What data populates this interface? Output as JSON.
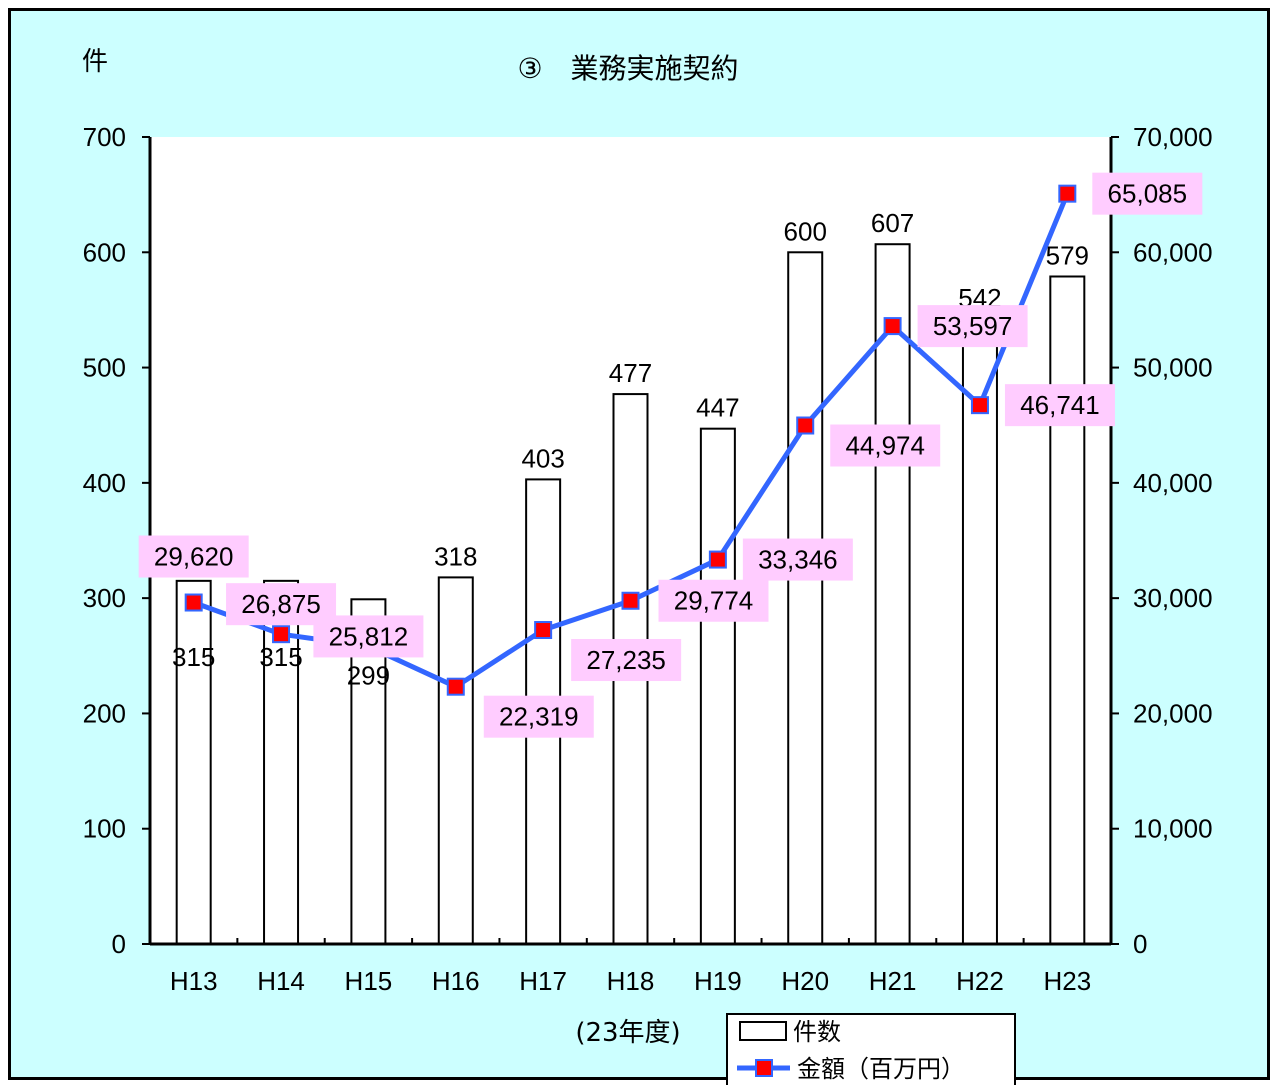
{
  "chart_data": {
    "type": "bar+line",
    "title": "③　業務実施契約",
    "y_left_label": "件",
    "x_note": "(23年度)",
    "categories": [
      "H13",
      "H14",
      "H15",
      "H16",
      "H17",
      "H18",
      "H19",
      "H20",
      "H21",
      "H22",
      "H23"
    ],
    "series": [
      {
        "name": "件数",
        "type": "bar",
        "axis": "left",
        "values": [
          315,
          315,
          299,
          318,
          403,
          477,
          447,
          600,
          607,
          542,
          579
        ],
        "labels": [
          "315",
          "315",
          "299",
          "318",
          "403",
          "477",
          "447",
          "600",
          "607",
          "542",
          "579"
        ]
      },
      {
        "name": "金額（百万円）",
        "type": "line",
        "axis": "right",
        "values": [
          29620,
          26875,
          25812,
          22319,
          27235,
          29774,
          33346,
          44974,
          53597,
          46741,
          65085
        ],
        "labels": [
          "29,620",
          "26,875",
          "25,812",
          "22,319",
          "27,235",
          "29,774",
          "33,346",
          "44,974",
          "53,597",
          "46,741",
          "65,085"
        ]
      }
    ],
    "y_left": {
      "min": 0,
      "max": 700,
      "ticks": [
        "0",
        "100",
        "200",
        "300",
        "400",
        "500",
        "600",
        "700"
      ]
    },
    "y_right": {
      "min": 0,
      "max": 70000,
      "ticks": [
        "0",
        "10,000",
        "20,000",
        "30,000",
        "40,000",
        "50,000",
        "60,000",
        "70,000"
      ]
    },
    "grid": false,
    "legend_position": "bottom-right",
    "colors": {
      "background": "#ccffff",
      "plot": "#ffffff",
      "bar_fill": "#ffffff",
      "line": "#3366ff",
      "marker": "#ff0000",
      "label_bg": "#ffccff"
    }
  }
}
